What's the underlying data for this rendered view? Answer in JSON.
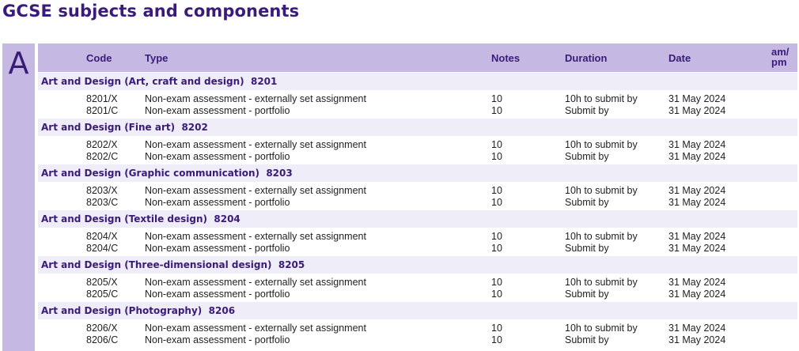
{
  "page": {
    "title": "GCSE subjects and components",
    "section_letter": "A"
  },
  "table": {
    "headers": {
      "code": "Code",
      "type": "Type",
      "notes": "Notes",
      "duration": "Duration",
      "date": "Date",
      "ampm_line1": "am/",
      "ampm_line2": "pm"
    },
    "groups": [
      {
        "title": "Art and Design (Art, craft and design)  8201",
        "rows": [
          {
            "code": "8201/X",
            "type": "Non-exam assessment - externally set assignment",
            "notes": "10",
            "duration": "10h to submit by",
            "date": "31 May 2024"
          },
          {
            "code": "8201/C",
            "type": "Non-exam assessment - portfolio",
            "notes": "10",
            "duration": "Submit by",
            "date": "31 May 2024"
          }
        ]
      },
      {
        "title": "Art and Design (Fine art)  8202",
        "rows": [
          {
            "code": "8202/X",
            "type": "Non-exam assessment - externally set assignment",
            "notes": "10",
            "duration": "10h to submit by",
            "date": "31 May 2024"
          },
          {
            "code": "8202/C",
            "type": "Non-exam assessment - portfolio",
            "notes": "10",
            "duration": "Submit by",
            "date": "31 May 2024"
          }
        ]
      },
      {
        "title": "Art and Design (Graphic communication)  8203",
        "rows": [
          {
            "code": "8203/X",
            "type": "Non-exam assessment - externally set assignment",
            "notes": "10",
            "duration": "10h to submit by",
            "date": "31 May 2024"
          },
          {
            "code": "8203/C",
            "type": "Non-exam assessment - portfolio",
            "notes": "10",
            "duration": "Submit by",
            "date": "31 May 2024"
          }
        ]
      },
      {
        "title": "Art and Design (Textile design)  8204",
        "rows": [
          {
            "code": "8204/X",
            "type": "Non-exam assessment - externally set assignment",
            "notes": "10",
            "duration": "10h to submit by",
            "date": "31 May 2024"
          },
          {
            "code": "8204/C",
            "type": "Non-exam assessment - portfolio",
            "notes": "10",
            "duration": "Submit by",
            "date": "31 May 2024"
          }
        ]
      },
      {
        "title": "Art and Design (Three-dimensional design)  8205",
        "rows": [
          {
            "code": "8205/X",
            "type": "Non-exam assessment - externally set assignment",
            "notes": "10",
            "duration": "10h to submit by",
            "date": "31 May 2024"
          },
          {
            "code": "8205/C",
            "type": "Non-exam assessment - portfolio",
            "notes": "10",
            "duration": "Submit by",
            "date": "31 May 2024"
          }
        ]
      },
      {
        "title": "Art and Design (Photography)  8206",
        "rows": [
          {
            "code": "8206/X",
            "type": "Non-exam assessment - externally set assignment",
            "notes": "10",
            "duration": "10h to submit by",
            "date": "31 May 2024"
          },
          {
            "code": "8206/C",
            "type": "Non-exam assessment - portfolio",
            "notes": "10",
            "duration": "Submit by",
            "date": "31 May 2024"
          }
        ]
      }
    ]
  }
}
